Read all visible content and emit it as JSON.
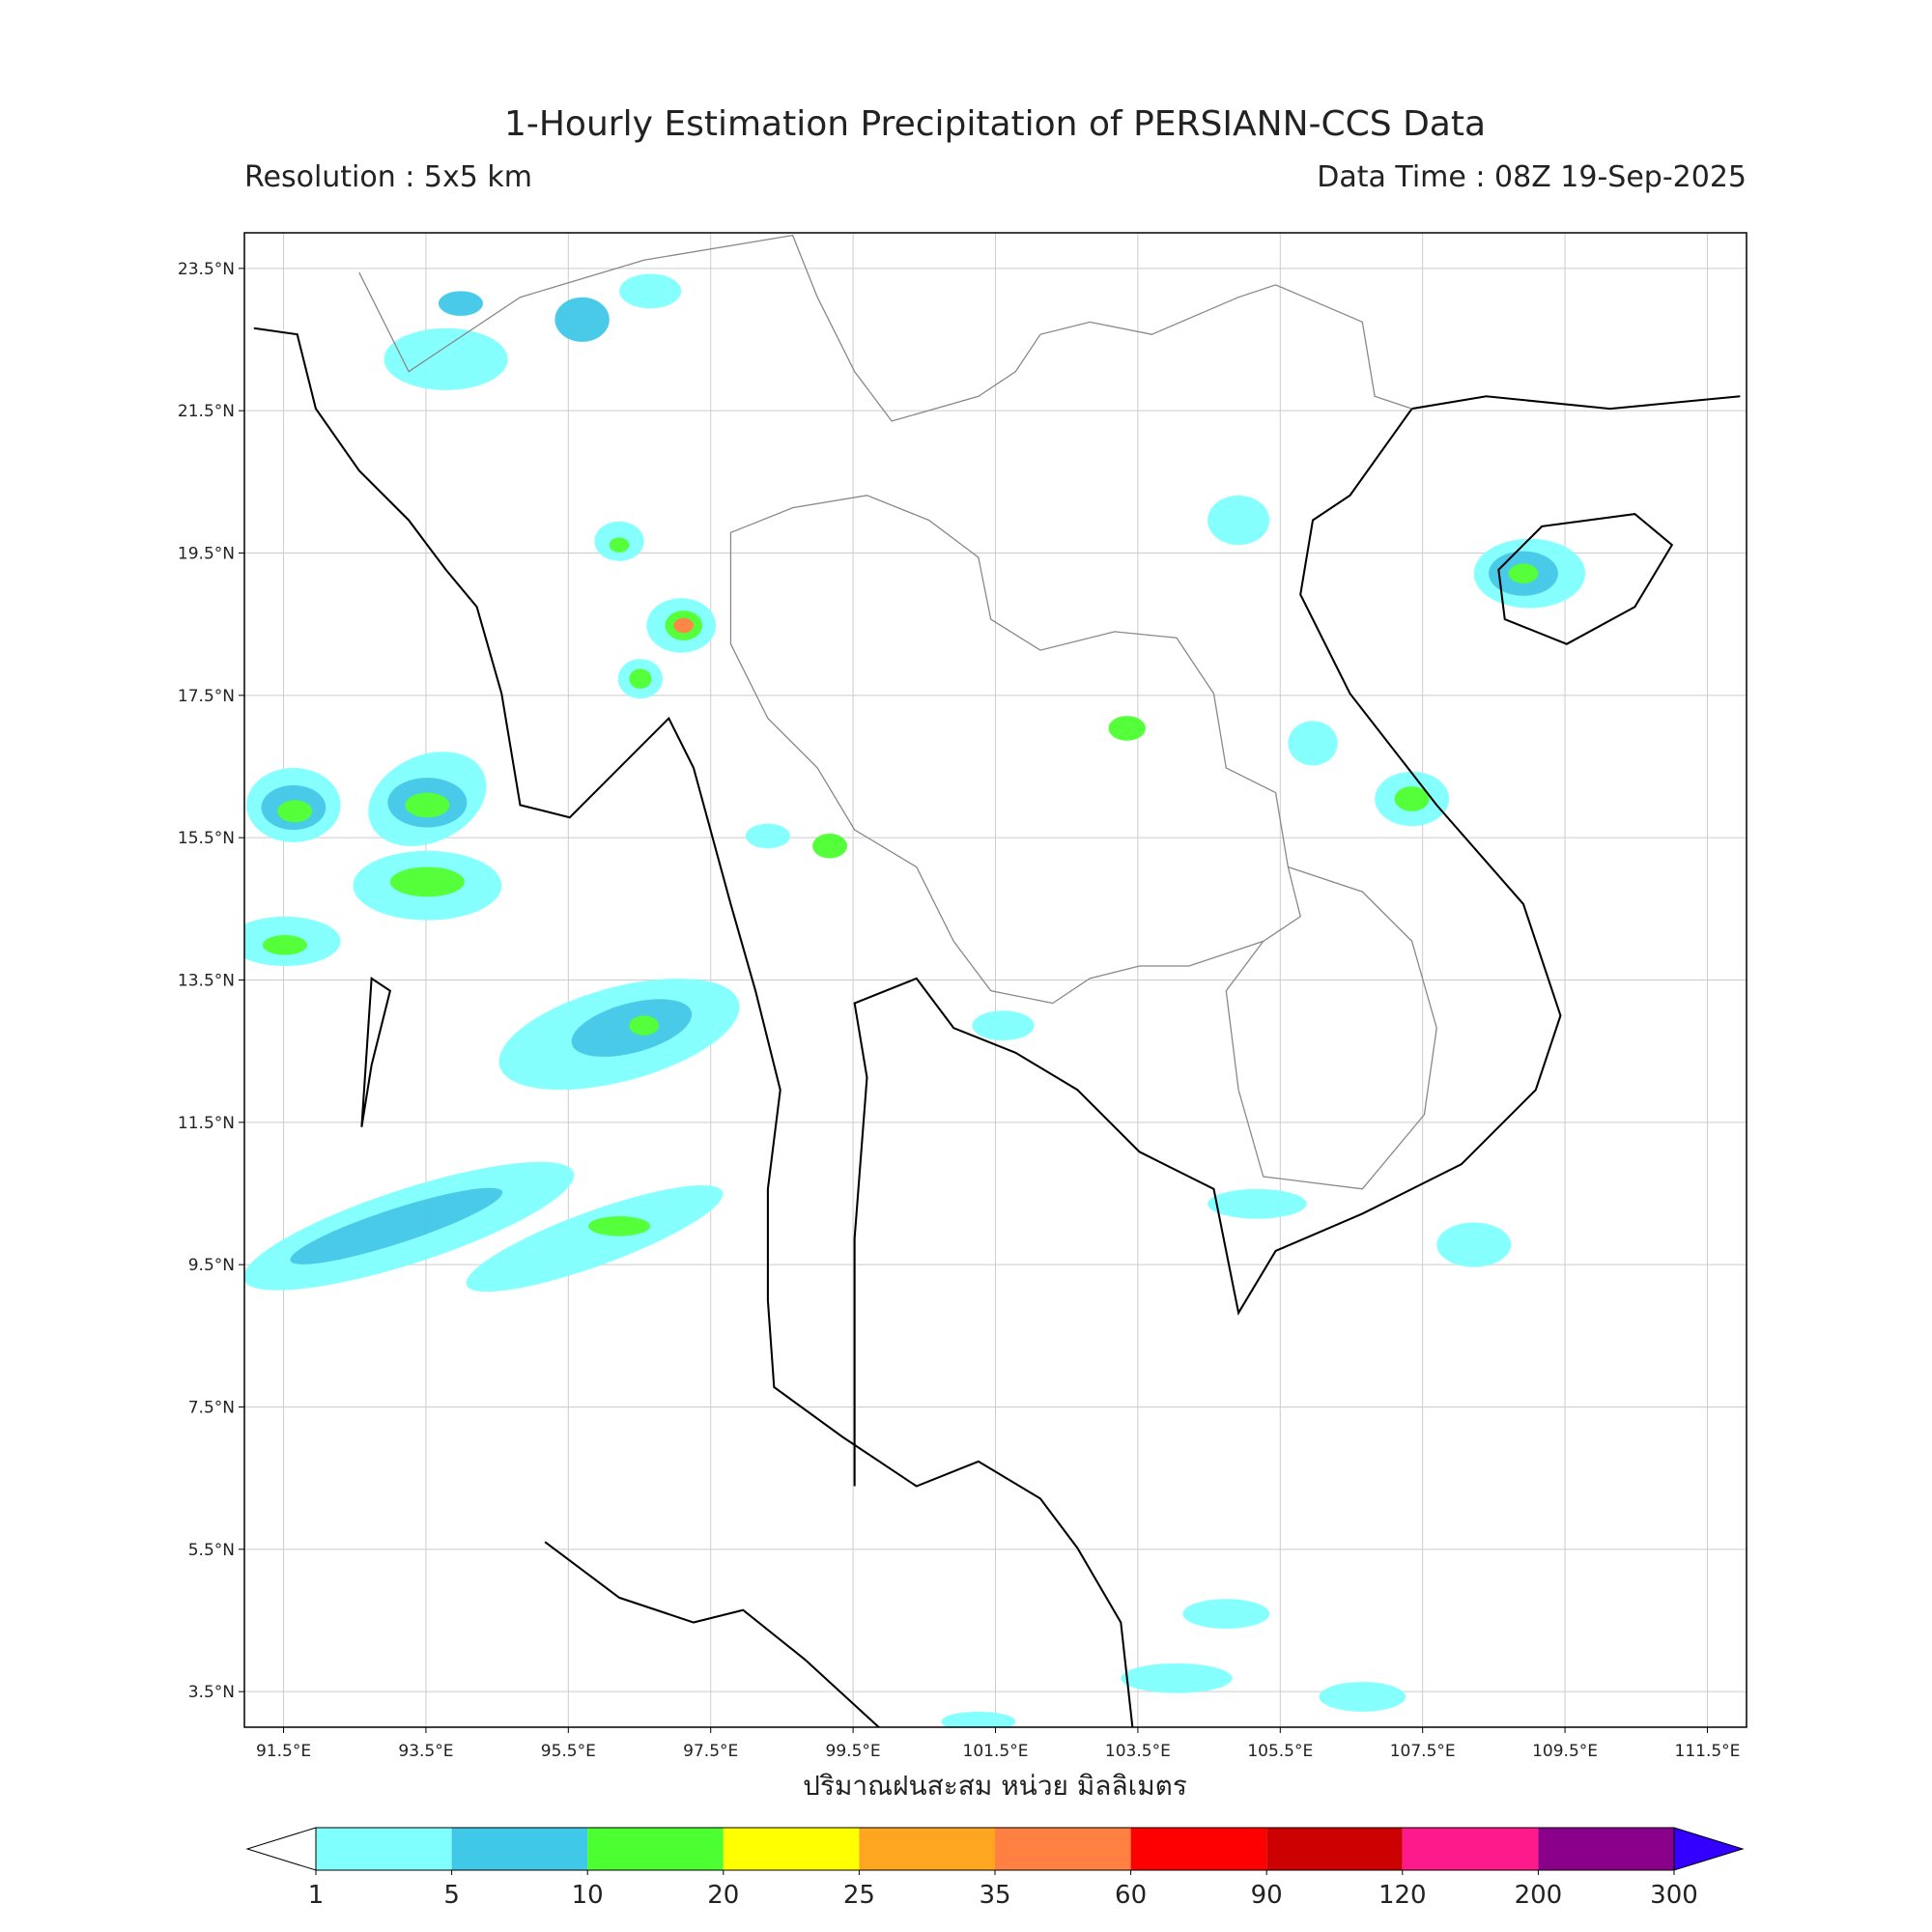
{
  "header": {
    "title": "1-Hourly Estimation Precipitation of PERSIANN-CCS Data",
    "subtitle_left": "Resolution : 5x5 km",
    "subtitle_right": "Data Time : 08Z 19-Sep-2025"
  },
  "map": {
    "lon_range": [
      90.95,
      112.05
    ],
    "lat_range": [
      3.0,
      24.0
    ],
    "grid": true,
    "lon_ticks": [
      {
        "value": 91.5,
        "label": "91.5°E"
      },
      {
        "value": 93.5,
        "label": "93.5°E"
      },
      {
        "value": 95.5,
        "label": "95.5°E"
      },
      {
        "value": 97.5,
        "label": "97.5°E"
      },
      {
        "value": 99.5,
        "label": "99.5°E"
      },
      {
        "value": 101.5,
        "label": "101.5°E"
      },
      {
        "value": 103.5,
        "label": "103.5°E"
      },
      {
        "value": 105.5,
        "label": "105.5°E"
      },
      {
        "value": 107.5,
        "label": "107.5°E"
      },
      {
        "value": 109.5,
        "label": "109.5°E"
      },
      {
        "value": 111.5,
        "label": "111.5°E"
      }
    ],
    "lat_ticks": [
      {
        "value": 23.5,
        "label": "23.5°N"
      },
      {
        "value": 21.5,
        "label": "21.5°N"
      },
      {
        "value": 19.5,
        "label": "19.5°N"
      },
      {
        "value": 17.5,
        "label": "17.5°N"
      },
      {
        "value": 15.5,
        "label": "15.5°N"
      },
      {
        "value": 13.5,
        "label": "13.5°N"
      },
      {
        "value": 11.5,
        "label": "11.5°N"
      },
      {
        "value": 9.5,
        "label": "9.5°N"
      },
      {
        "value": 7.5,
        "label": "7.5°N"
      },
      {
        "value": 5.5,
        "label": "5.5°N"
      },
      {
        "value": 3.5,
        "label": "3.5°N"
      }
    ]
  },
  "colorbar": {
    "label": "ปริมาณฝนสะสม หน่วย มิลลิเมตร",
    "levels": [
      1,
      5,
      10,
      20,
      25,
      35,
      60,
      90,
      120,
      200,
      300
    ],
    "colors": [
      "#80ffff",
      "#40c8e8",
      "#4cff30",
      "#ffff00",
      "#ffa620",
      "#ff8040",
      "#ff0000",
      "#cc0000",
      "#ff1a8c",
      "#8b008b"
    ],
    "under_color": "#ffffff",
    "over_color": "#3300ff"
  }
}
